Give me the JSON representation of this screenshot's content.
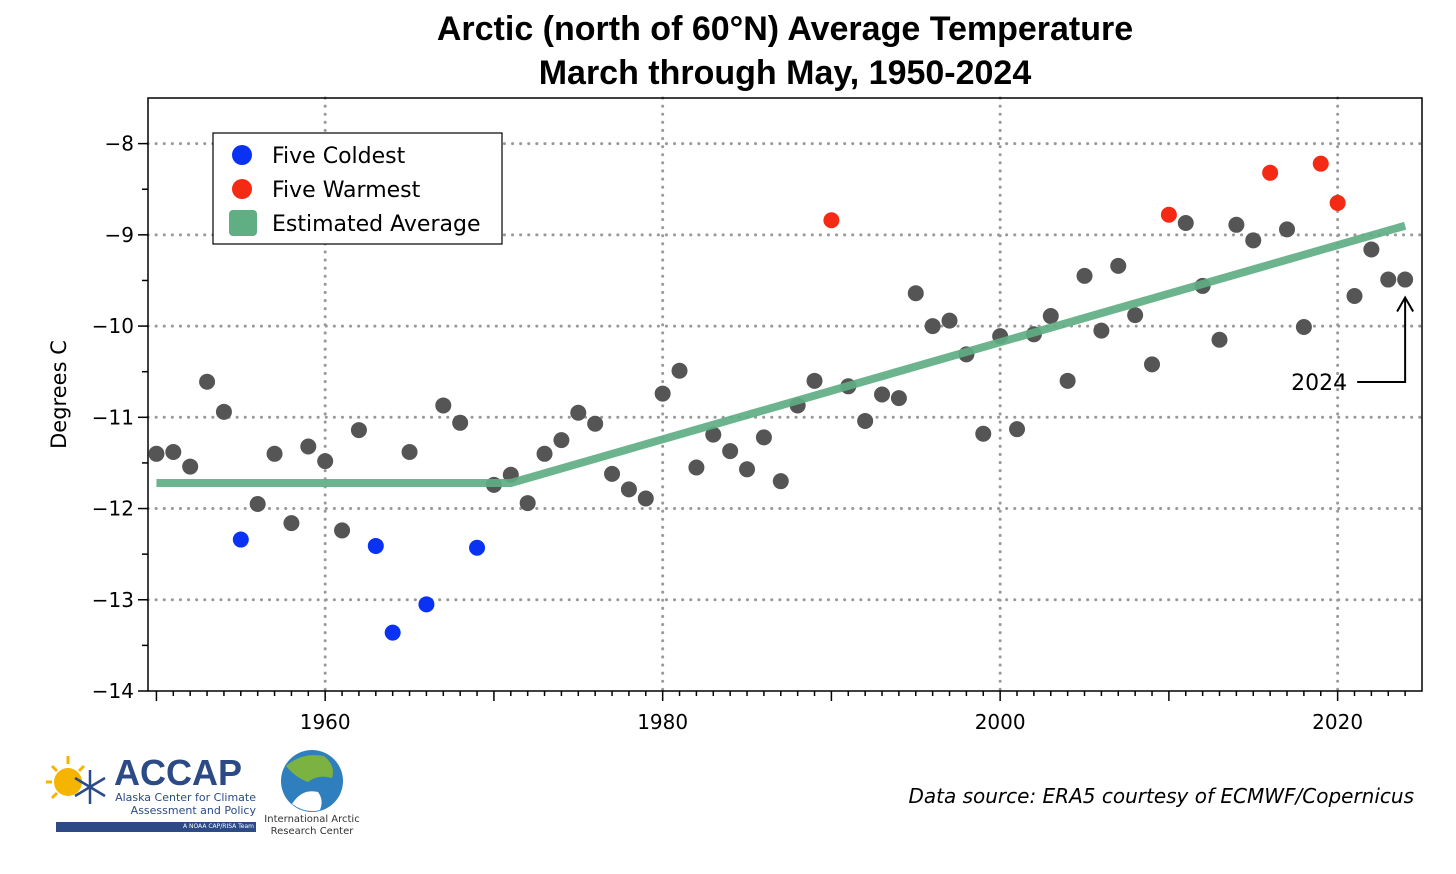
{
  "chart_data": {
    "type": "scatter",
    "title": "Arctic (north of 60°N) Average Temperature",
    "subtitle": "March through May, 1950-2024",
    "xlabel": "",
    "ylabel": "Degrees C",
    "xlim": [
      1949.5,
      2025
    ],
    "ylim": [
      -14,
      -7.5
    ],
    "xticks": [
      1960,
      1980,
      2000,
      2020
    ],
    "yticks": [
      -8,
      -9,
      -10,
      -11,
      -12,
      -13,
      -14
    ],
    "ytick_labels": [
      "−8",
      "−9",
      "−10",
      "−11",
      "−12",
      "−13",
      "−14"
    ],
    "grid": true,
    "legend_position": "top-left",
    "legend": [
      {
        "label": "Five Coldest",
        "color": "#0a32f5",
        "kind": "dot"
      },
      {
        "label": "Five Warmest",
        "color": "#f52a14",
        "kind": "dot"
      },
      {
        "label": "Estimated Average",
        "color": "#5fae84",
        "kind": "swatch"
      }
    ],
    "colors": {
      "normal": "#555555",
      "coldest": "#0a32f5",
      "warmest": "#f52a14",
      "trend": "#5fae84"
    },
    "series": [
      {
        "name": "Annual values",
        "x": [
          1950,
          1951,
          1952,
          1953,
          1954,
          1955,
          1956,
          1957,
          1958,
          1959,
          1960,
          1961,
          1962,
          1963,
          1964,
          1965,
          1966,
          1967,
          1968,
          1969,
          1970,
          1971,
          1972,
          1973,
          1974,
          1975,
          1976,
          1977,
          1978,
          1979,
          1980,
          1981,
          1982,
          1983,
          1984,
          1985,
          1986,
          1987,
          1988,
          1989,
          1990,
          1991,
          1992,
          1993,
          1994,
          1995,
          1996,
          1997,
          1998,
          1999,
          2000,
          2001,
          2002,
          2003,
          2004,
          2005,
          2006,
          2007,
          2008,
          2009,
          2010,
          2011,
          2012,
          2013,
          2014,
          2015,
          2016,
          2017,
          2018,
          2019,
          2020,
          2021,
          2022,
          2023,
          2024
        ],
        "y": [
          -11.4,
          -11.38,
          -11.54,
          -10.61,
          -10.94,
          -12.34,
          -11.95,
          -11.4,
          -12.16,
          -11.32,
          -11.48,
          -12.24,
          -11.14,
          -12.41,
          -13.36,
          -11.38,
          -13.05,
          -10.87,
          -11.06,
          -12.43,
          -11.74,
          -11.63,
          -11.94,
          -11.4,
          -11.25,
          -10.95,
          -11.07,
          -11.62,
          -11.79,
          -11.89,
          -10.74,
          -10.49,
          -11.55,
          -11.19,
          -11.37,
          -11.57,
          -11.22,
          -11.7,
          -10.87,
          -10.6,
          -8.84,
          -10.66,
          -11.04,
          -10.75,
          -10.79,
          -9.64,
          -10.0,
          -9.94,
          -10.31,
          -11.18,
          -10.11,
          -11.13,
          -10.09,
          -9.89,
          -10.6,
          -9.45,
          -10.05,
          -9.34,
          -9.88,
          -10.42,
          -8.78,
          -8.87,
          -9.56,
          -10.15,
          -8.89,
          -9.06,
          -8.32,
          -8.94,
          -10.01,
          -8.22,
          -8.65,
          -9.67,
          -9.16,
          -9.49,
          -9.49
        ]
      },
      {
        "name": "Estimated Average",
        "x": [
          1950,
          1971,
          2024
        ],
        "y": [
          -11.72,
          -11.72,
          -8.9
        ]
      }
    ],
    "coldest_years": [
      1955,
      1963,
      1964,
      1966,
      1969
    ],
    "warmest_years": [
      1990,
      2010,
      2016,
      2019,
      2020
    ],
    "annotation": {
      "text": "2024",
      "year": 2024
    }
  },
  "footer": {
    "source": "Data source: ERA5 courtesy of ECMWF/Copernicus",
    "accap_logo": "ACCAP",
    "accap_sub": "Alaska Center for Climate Assessment and Policy",
    "accap_tag": "A NOAA CAP/RISA Team",
    "iarc_logo": "International Arctic Research Center"
  }
}
